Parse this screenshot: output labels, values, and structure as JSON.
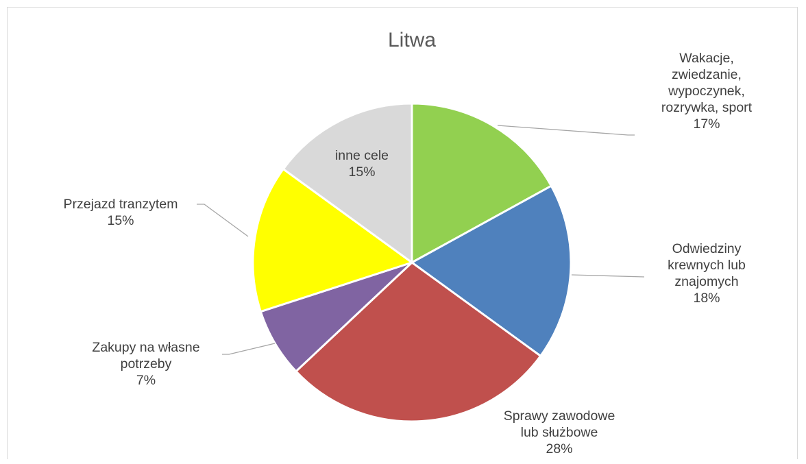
{
  "chart_data": {
    "type": "pie",
    "title": "Litwa",
    "slices": [
      {
        "label_lines": [
          "Wakacje,",
          "zwiedzanie,",
          "wypoczynek,",
          "rozrywka, sport"
        ],
        "value": 17,
        "value_label": "17%",
        "color": "#92d050"
      },
      {
        "label_lines": [
          "Odwiedziny",
          "krewnych lub",
          "znajomych"
        ],
        "value": 18,
        "value_label": "18%",
        "color": "#4f81bd"
      },
      {
        "label_lines": [
          "Sprawy zawodowe",
          "lub służbowe"
        ],
        "value": 28,
        "value_label": "28%",
        "color": "#c0504d"
      },
      {
        "label_lines": [
          "Zakupy na własne",
          "potrzeby"
        ],
        "value": 7,
        "value_label": "7%",
        "color": "#8064a2"
      },
      {
        "label_lines": [
          "Przejazd tranzytem"
        ],
        "value": 15,
        "value_label": "15%",
        "color": "#ffff00"
      },
      {
        "label_lines": [
          "inne cele"
        ],
        "value": 15,
        "value_label": "15%",
        "color": "#d9d9d9"
      }
    ],
    "start_angle_deg": 0,
    "direction": "clockwise",
    "legend": "none",
    "data_labels": "category name and percentage"
  }
}
